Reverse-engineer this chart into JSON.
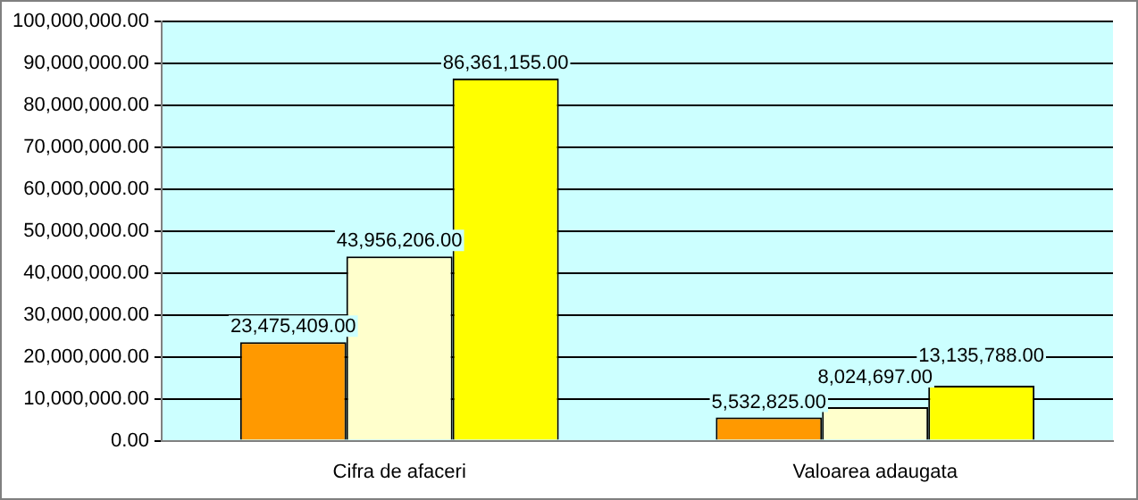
{
  "chart_data": {
    "type": "bar",
    "categories": [
      "Cifra de afaceri",
      "Valoarea adaugata"
    ],
    "series": [
      {
        "color": "#ff9900",
        "values": [
          23475409,
          5532825
        ],
        "value_labels": [
          "23,475,409.00",
          "5,532,825.00"
        ]
      },
      {
        "color": "#ffffcc",
        "values": [
          43956206,
          8024697
        ],
        "value_labels": [
          "43,956,206.00",
          "8,024,697.00"
        ]
      },
      {
        "color": "#ffff00",
        "values": [
          86361155,
          13135788
        ],
        "value_labels": [
          "86,361,155.00",
          "13,135,788.00"
        ]
      }
    ],
    "ylim": [
      0,
      100000000
    ],
    "yticks": [
      {
        "value": 0,
        "label": "0.00"
      },
      {
        "value": 10000000,
        "label": "10,000,000.00"
      },
      {
        "value": 20000000,
        "label": "20,000,000.00"
      },
      {
        "value": 30000000,
        "label": "30,000,000.00"
      },
      {
        "value": 40000000,
        "label": "40,000,000.00"
      },
      {
        "value": 50000000,
        "label": "50,000,000.00"
      },
      {
        "value": 60000000,
        "label": "60,000,000.00"
      },
      {
        "value": 70000000,
        "label": "70,000,000.00"
      },
      {
        "value": 80000000,
        "label": "80,000,000.00"
      },
      {
        "value": 90000000,
        "label": "90,000,000.00"
      },
      {
        "value": 100000000,
        "label": "100,000,000.00"
      }
    ],
    "grid": "y",
    "legend": false
  }
}
